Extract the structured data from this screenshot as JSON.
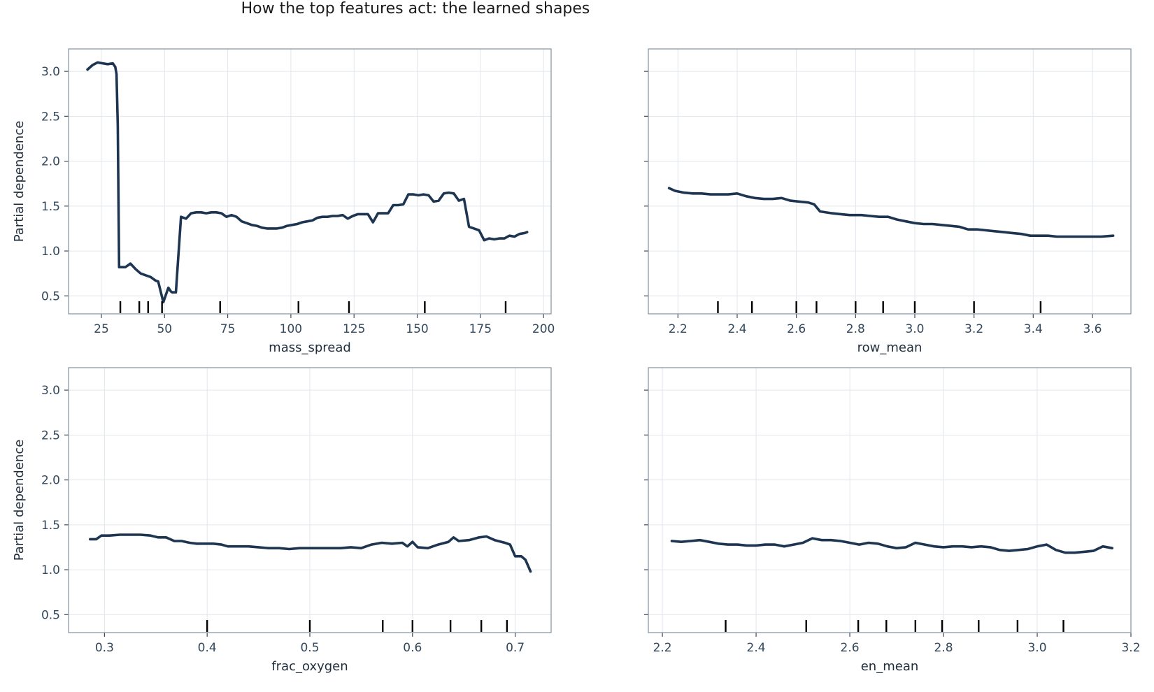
{
  "figure_title": "How the top features act: the learned shapes",
  "colors": {
    "curve": "#1d3550",
    "rug": "#000000",
    "frame": "#8c98a6",
    "grid": "#e1e6ec",
    "text": "#34495e"
  },
  "chart_data": [
    {
      "type": "line",
      "xlabel": "mass_spread",
      "ylabel": "Partial dependence",
      "xlim": [
        12,
        203
      ],
      "ylim": [
        0.3,
        3.25
      ],
      "xticks": [
        25,
        50,
        75,
        100,
        125,
        150,
        175,
        200
      ],
      "xtick_labels": [
        "25",
        "50",
        "75",
        "100",
        "125",
        "150",
        "175",
        "200"
      ],
      "yticks": [
        0.5,
        1.0,
        1.5,
        2.0,
        2.5,
        3.0
      ],
      "ytick_labels": [
        "0.5",
        "1.0",
        "1.5",
        "2.0",
        "2.5",
        "3.0"
      ],
      "show_ytick_labels": true,
      "grid": true,
      "x": [
        19.5,
        21.5,
        23.5,
        25.5,
        27.5,
        29.5,
        30.5,
        31,
        31.5,
        32,
        34.5,
        36.5,
        38.5,
        40.5,
        42.5,
        44.5,
        45.5,
        46.5,
        47.5,
        49.5,
        51.5,
        52.5,
        53,
        54.5,
        56.5,
        58.5,
        60.5,
        62.5,
        64.5,
        66.5,
        68.5,
        70.5,
        72.5,
        74.5,
        76.5,
        78.5,
        80.5,
        82.5,
        84.5,
        86.5,
        88.5,
        90.5,
        92.5,
        94.5,
        96.5,
        98.5,
        100.5,
        102.5,
        104.5,
        106.5,
        108.5,
        110.5,
        112.5,
        114.5,
        116.5,
        118.5,
        120.5,
        122.5,
        124.5,
        126.5,
        128.5,
        130.5,
        132.5,
        134.5,
        136.5,
        138.5,
        140.5,
        142.5,
        144.5,
        146.5,
        148.5,
        150.5,
        152.5,
        154.5,
        156.5,
        158.5,
        160.5,
        162.5,
        164.5,
        166.5,
        168.5,
        170.5,
        172.5,
        174.5,
        176.5,
        178.5,
        180.5,
        182.5,
        184.5,
        186.5,
        188.5,
        190.5,
        192.5,
        193.5
      ],
      "y": [
        3.02,
        3.07,
        3.1,
        3.09,
        3.08,
        3.09,
        3.05,
        2.97,
        2.4,
        0.82,
        0.82,
        0.86,
        0.8,
        0.75,
        0.73,
        0.71,
        0.69,
        0.67,
        0.66,
        0.43,
        0.59,
        0.55,
        0.54,
        0.54,
        1.38,
        1.36,
        1.42,
        1.43,
        1.43,
        1.42,
        1.43,
        1.43,
        1.42,
        1.38,
        1.4,
        1.38,
        1.33,
        1.31,
        1.29,
        1.28,
        1.26,
        1.25,
        1.25,
        1.25,
        1.26,
        1.28,
        1.29,
        1.3,
        1.32,
        1.33,
        1.34,
        1.37,
        1.38,
        1.38,
        1.39,
        1.39,
        1.4,
        1.36,
        1.39,
        1.41,
        1.41,
        1.41,
        1.32,
        1.42,
        1.42,
        1.42,
        1.51,
        1.51,
        1.52,
        1.63,
        1.63,
        1.62,
        1.63,
        1.62,
        1.55,
        1.56,
        1.64,
        1.65,
        1.64,
        1.56,
        1.58,
        1.27,
        1.25,
        1.23,
        1.12,
        1.14,
        1.13,
        1.14,
        1.14,
        1.17,
        1.16,
        1.19,
        1.2,
        1.21
      ],
      "rug": [
        32.5,
        40,
        43.5,
        49,
        72,
        103,
        123,
        153,
        185
      ]
    },
    {
      "type": "line",
      "xlabel": "row_mean",
      "ylabel": "",
      "xlim": [
        2.1,
        3.73
      ],
      "ylim": [
        0.3,
        3.25
      ],
      "xticks": [
        2.2,
        2.4,
        2.6,
        2.8,
        3.0,
        3.2,
        3.4,
        3.6
      ],
      "xtick_labels": [
        "2.2",
        "2.4",
        "2.6",
        "2.8",
        "3.0",
        "3.2",
        "3.4",
        "3.6"
      ],
      "yticks": [
        0.5,
        1.0,
        1.5,
        2.0,
        2.5,
        3.0
      ],
      "ytick_labels": [
        "0.5",
        "1.0",
        "1.5",
        "2.0",
        "2.5",
        "3.0"
      ],
      "show_ytick_labels": false,
      "grid": true,
      "x": [
        2.17,
        2.19,
        2.22,
        2.25,
        2.28,
        2.31,
        2.34,
        2.37,
        2.4,
        2.43,
        2.46,
        2.49,
        2.52,
        2.55,
        2.58,
        2.61,
        2.64,
        2.66,
        2.68,
        2.72,
        2.75,
        2.78,
        2.82,
        2.85,
        2.88,
        2.91,
        2.94,
        2.97,
        3.0,
        3.03,
        3.06,
        3.09,
        3.12,
        3.15,
        3.18,
        3.21,
        3.24,
        3.27,
        3.3,
        3.33,
        3.36,
        3.39,
        3.42,
        3.45,
        3.48,
        3.51,
        3.54,
        3.57,
        3.6,
        3.63,
        3.67
      ],
      "y": [
        1.7,
        1.67,
        1.65,
        1.64,
        1.64,
        1.63,
        1.63,
        1.63,
        1.64,
        1.61,
        1.59,
        1.58,
        1.58,
        1.59,
        1.56,
        1.55,
        1.54,
        1.52,
        1.44,
        1.42,
        1.41,
        1.4,
        1.4,
        1.39,
        1.38,
        1.38,
        1.35,
        1.33,
        1.31,
        1.3,
        1.3,
        1.29,
        1.28,
        1.27,
        1.24,
        1.24,
        1.23,
        1.22,
        1.21,
        1.2,
        1.19,
        1.17,
        1.17,
        1.17,
        1.16,
        1.16,
        1.16,
        1.16,
        1.16,
        1.16,
        1.17
      ],
      "rug": [
        2.335,
        2.45,
        2.6,
        2.668,
        2.8,
        2.893,
        3.0,
        3.2,
        3.425
      ]
    },
    {
      "type": "line",
      "xlabel": "frac_oxygen",
      "ylabel": "Partial dependence",
      "xlim": [
        0.265,
        0.735
      ],
      "ylim": [
        0.3,
        3.25
      ],
      "xticks": [
        0.3,
        0.4,
        0.5,
        0.6,
        0.7
      ],
      "xtick_labels": [
        "0.3",
        "0.4",
        "0.5",
        "0.6",
        "0.7"
      ],
      "yticks": [
        0.5,
        1.0,
        1.5,
        2.0,
        2.5,
        3.0
      ],
      "ytick_labels": [
        "0.5",
        "1.0",
        "1.5",
        "2.0",
        "2.5",
        "3.0"
      ],
      "show_ytick_labels": true,
      "grid": true,
      "x": [
        0.286,
        0.292,
        0.297,
        0.305,
        0.315,
        0.325,
        0.335,
        0.345,
        0.352,
        0.36,
        0.368,
        0.375,
        0.383,
        0.39,
        0.398,
        0.406,
        0.414,
        0.42,
        0.43,
        0.44,
        0.45,
        0.46,
        0.47,
        0.48,
        0.49,
        0.5,
        0.51,
        0.52,
        0.53,
        0.54,
        0.55,
        0.56,
        0.57,
        0.58,
        0.59,
        0.595,
        0.6,
        0.605,
        0.615,
        0.625,
        0.635,
        0.64,
        0.645,
        0.655,
        0.665,
        0.672,
        0.68,
        0.69,
        0.695,
        0.7,
        0.706,
        0.71,
        0.715
      ],
      "y": [
        1.34,
        1.34,
        1.38,
        1.38,
        1.39,
        1.39,
        1.39,
        1.38,
        1.36,
        1.36,
        1.32,
        1.32,
        1.3,
        1.29,
        1.29,
        1.29,
        1.28,
        1.26,
        1.26,
        1.26,
        1.25,
        1.24,
        1.24,
        1.23,
        1.24,
        1.24,
        1.24,
        1.24,
        1.24,
        1.25,
        1.24,
        1.28,
        1.3,
        1.29,
        1.3,
        1.26,
        1.31,
        1.25,
        1.24,
        1.28,
        1.31,
        1.36,
        1.32,
        1.33,
        1.36,
        1.37,
        1.33,
        1.3,
        1.28,
        1.15,
        1.15,
        1.11,
        0.98
      ],
      "rug": [
        0.4,
        0.5,
        0.571,
        0.6,
        0.637,
        0.667,
        0.692
      ]
    },
    {
      "type": "line",
      "xlabel": "en_mean",
      "ylabel": "",
      "xlim": [
        2.17,
        3.2
      ],
      "ylim": [
        0.3,
        3.25
      ],
      "xticks": [
        2.2,
        2.4,
        2.6,
        2.8,
        3.0,
        3.2
      ],
      "xtick_labels": [
        "2.2",
        "2.4",
        "2.6",
        "2.8",
        "3.0",
        "3.2"
      ],
      "yticks": [
        0.5,
        1.0,
        1.5,
        2.0,
        2.5,
        3.0
      ],
      "ytick_labels": [
        "0.5",
        "1.0",
        "1.5",
        "2.0",
        "2.5",
        "3.0"
      ],
      "show_ytick_labels": false,
      "grid": true,
      "x": [
        2.22,
        2.24,
        2.26,
        2.28,
        2.3,
        2.32,
        2.34,
        2.36,
        2.38,
        2.4,
        2.42,
        2.44,
        2.46,
        2.48,
        2.5,
        2.52,
        2.54,
        2.56,
        2.58,
        2.6,
        2.62,
        2.64,
        2.66,
        2.68,
        2.7,
        2.72,
        2.74,
        2.76,
        2.78,
        2.8,
        2.82,
        2.84,
        2.86,
        2.88,
        2.9,
        2.92,
        2.94,
        2.96,
        2.98,
        3.0,
        3.02,
        3.04,
        3.06,
        3.08,
        3.1,
        3.12,
        3.14,
        3.16
      ],
      "y": [
        1.32,
        1.31,
        1.32,
        1.33,
        1.31,
        1.29,
        1.28,
        1.28,
        1.27,
        1.27,
        1.28,
        1.28,
        1.26,
        1.28,
        1.3,
        1.35,
        1.33,
        1.33,
        1.32,
        1.3,
        1.28,
        1.3,
        1.29,
        1.26,
        1.24,
        1.25,
        1.3,
        1.28,
        1.26,
        1.25,
        1.26,
        1.26,
        1.25,
        1.26,
        1.25,
        1.22,
        1.21,
        1.22,
        1.23,
        1.26,
        1.28,
        1.22,
        1.19,
        1.19,
        1.2,
        1.21,
        1.26,
        1.24
      ],
      "rug": [
        2.335,
        2.507,
        2.618,
        2.678,
        2.74,
        2.797,
        2.875,
        2.958,
        3.056
      ]
    }
  ]
}
